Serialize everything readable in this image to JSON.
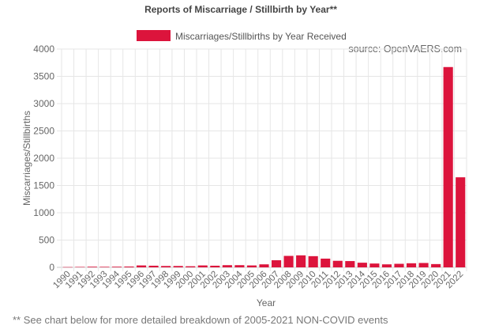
{
  "chart_data": {
    "type": "bar",
    "title": "Reports of Miscarriage / Stillbirth by Year**",
    "xlabel": "Year",
    "ylabel": "Miscarriages/Stillbirths",
    "ylim": [
      0,
      4000
    ],
    "yticks": [
      0,
      500,
      1000,
      1500,
      2000,
      2500,
      3000,
      3500,
      4000
    ],
    "grid": true,
    "legend_position": "top-center",
    "annotation": "source: OpenVAERS.com",
    "categories": [
      "1990",
      "1991",
      "1992",
      "1993",
      "1994",
      "1995",
      "1996",
      "1997",
      "1998",
      "1999",
      "2000",
      "2001",
      "2002",
      "2003",
      "2004",
      "2005",
      "2006",
      "2007",
      "2008",
      "2009",
      "2010",
      "2011",
      "2012",
      "2013",
      "2014",
      "2015",
      "2016",
      "2017",
      "2018",
      "2019",
      "2020",
      "2021",
      "2022"
    ],
    "series": [
      {
        "name": "Miscarriages/Stillbirths by Year Received",
        "color": "#dc143c",
        "values": [
          5,
          8,
          12,
          10,
          12,
          15,
          35,
          30,
          25,
          25,
          20,
          35,
          30,
          40,
          40,
          35,
          55,
          130,
          210,
          220,
          205,
          160,
          120,
          115,
          85,
          70,
          55,
          65,
          75,
          80,
          60,
          3670,
          1650
        ]
      }
    ]
  },
  "footnote": "** See chart below for more detailed breakdown of 2005-2021 NON-COVID events"
}
